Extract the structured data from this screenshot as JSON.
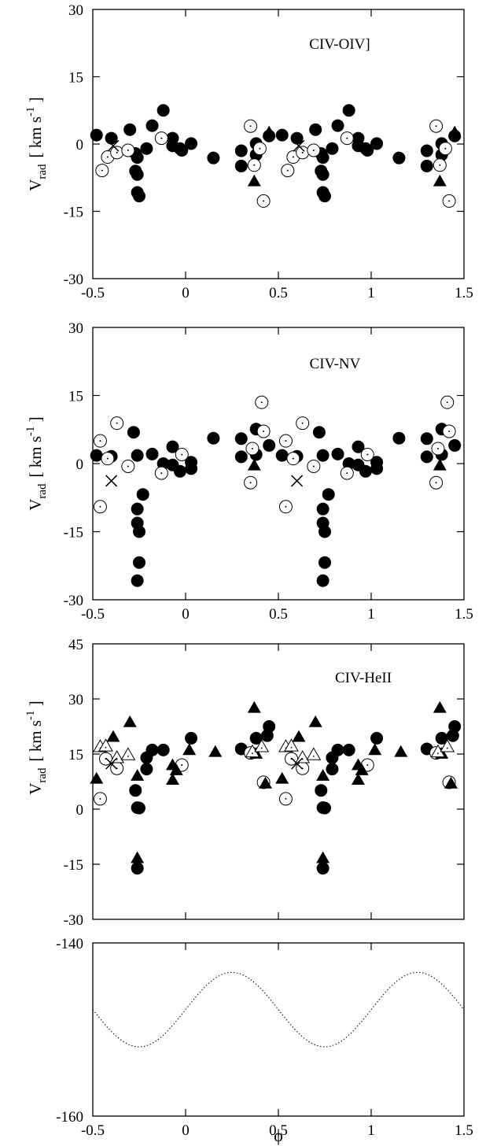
{
  "chart_data": [
    {
      "type": "scatter",
      "label": "CIV-OIV]",
      "ylabel": "V_rad [ km s^-1 ]",
      "ylabel_parts": {
        "V": "V",
        "sub": "rad",
        "unit_open": "[ km s",
        "sup": "-1",
        "unit_close": " ]"
      },
      "xlim": [
        -0.5,
        1.5
      ],
      "ylim": [
        -30,
        30
      ],
      "xticks": [
        "-0.5",
        "0",
        "0.5",
        "1",
        "1.5"
      ],
      "yticks": [
        "-30",
        "-15",
        "0",
        "15",
        "30"
      ],
      "series": [
        {
          "marker": "filled-circle",
          "points": [
            [
              -0.48,
              2.0
            ],
            [
              -0.4,
              1.3
            ],
            [
              -0.3,
              3.2
            ],
            [
              -0.27,
              -2.1
            ],
            [
              -0.26,
              -3.0
            ],
            [
              -0.27,
              -6.0
            ],
            [
              -0.26,
              -6.8
            ],
            [
              -0.26,
              -10.8
            ],
            [
              -0.25,
              -11.6
            ],
            [
              -0.21,
              -1.0
            ],
            [
              -0.18,
              4.1
            ],
            [
              -0.12,
              7.5
            ],
            [
              -0.07,
              1.3
            ],
            [
              -0.07,
              -0.4
            ],
            [
              -0.03,
              -1.0
            ],
            [
              -0.02,
              -1.4
            ],
            [
              0.03,
              0.1
            ],
            [
              0.15,
              -3.1
            ],
            [
              0.3,
              -1.5
            ],
            [
              0.3,
              -4.9
            ],
            [
              0.38,
              0.1
            ],
            [
              0.38,
              -2.4
            ],
            [
              0.45,
              1.8
            ]
          ]
        },
        {
          "marker": "open-circle",
          "points": [
            [
              -0.45,
              -5.9
            ],
            [
              -0.42,
              -2.9
            ],
            [
              -0.37,
              -1.9
            ],
            [
              -0.31,
              -1.4
            ],
            [
              -0.13,
              1.3
            ],
            [
              0.35,
              4.0
            ],
            [
              0.37,
              -4.7
            ],
            [
              0.4,
              -1.0
            ],
            [
              0.42,
              -12.7
            ]
          ]
        },
        {
          "marker": "filled-triangle",
          "points": [
            [
              0.37,
              -8.3
            ],
            [
              0.45,
              2.6
            ]
          ]
        },
        {
          "marker": "cross",
          "points": [
            [
              -0.39,
              -0.4
            ]
          ]
        }
      ]
    },
    {
      "type": "scatter",
      "label": "CIV-NV",
      "ylabel": "V_rad [ km s^-1 ]",
      "ylabel_parts": {
        "V": "V",
        "sub": "rad",
        "unit_open": "[ km s",
        "sup": "-1",
        "unit_close": " ]"
      },
      "xlim": [
        -0.5,
        1.5
      ],
      "ylim": [
        -30,
        30
      ],
      "xticks": [
        "-0.5",
        "0",
        "0.5",
        "1",
        "1.5"
      ],
      "yticks": [
        "-30",
        "-15",
        "0",
        "15",
        "30"
      ],
      "series": [
        {
          "marker": "filled-circle",
          "points": [
            [
              -0.48,
              1.8
            ],
            [
              -0.4,
              1.6
            ],
            [
              -0.28,
              6.9
            ],
            [
              -0.26,
              1.8
            ],
            [
              -0.26,
              -10.0
            ],
            [
              -0.26,
              -13.1
            ],
            [
              -0.25,
              -15.0
            ],
            [
              -0.25,
              -21.8
            ],
            [
              -0.26,
              -25.8
            ],
            [
              -0.23,
              -6.8
            ],
            [
              -0.18,
              2.1
            ],
            [
              -0.12,
              0.0
            ],
            [
              -0.07,
              3.7
            ],
            [
              -0.07,
              -0.3
            ],
            [
              -0.03,
              -1.7
            ],
            [
              0.03,
              0.3
            ],
            [
              0.03,
              -1.1
            ],
            [
              0.15,
              5.6
            ],
            [
              0.3,
              5.5
            ],
            [
              0.3,
              1.5
            ],
            [
              0.38,
              7.6
            ],
            [
              0.38,
              2.0
            ],
            [
              0.45,
              4.0
            ]
          ]
        },
        {
          "marker": "open-circle",
          "points": [
            [
              -0.46,
              5.0
            ],
            [
              -0.46,
              -9.5
            ],
            [
              -0.42,
              1.1
            ],
            [
              -0.37,
              8.9
            ],
            [
              -0.31,
              -0.6
            ],
            [
              -0.13,
              -2.1
            ],
            [
              -0.02,
              2.0
            ],
            [
              0.35,
              -4.2
            ],
            [
              0.36,
              3.3
            ],
            [
              0.41,
              13.5
            ],
            [
              0.42,
              7.1
            ]
          ]
        },
        {
          "marker": "filled-triangle",
          "points": [
            [
              0.37,
              -0.4
            ]
          ]
        },
        {
          "marker": "cross",
          "points": [
            [
              -0.4,
              -3.8
            ]
          ]
        }
      ]
    },
    {
      "type": "scatter",
      "label": "CIV-HeII",
      "ylabel": "V_rad [ km s^-1 ]",
      "ylabel_parts": {
        "V": "V",
        "sub": "rad",
        "unit_open": "[ km s",
        "sup": "-1",
        "unit_close": " ]"
      },
      "xlim": [
        -0.5,
        1.5
      ],
      "ylim": [
        -30,
        45
      ],
      "xticks": [],
      "yticks": [
        "-30",
        "-15",
        "0",
        "15",
        "30",
        "45"
      ],
      "series": [
        {
          "marker": "filled-circle",
          "points": [
            [
              -0.27,
              5.1
            ],
            [
              -0.26,
              0.4
            ],
            [
              -0.25,
              0.3
            ],
            [
              -0.26,
              -16.1
            ],
            [
              -0.21,
              10.9
            ],
            [
              -0.21,
              14.0
            ],
            [
              -0.18,
              16.1
            ],
            [
              -0.12,
              16.1
            ],
            [
              0.03,
              19.3
            ],
            [
              0.3,
              16.4
            ],
            [
              0.38,
              19.3
            ],
            [
              0.45,
              22.5
            ],
            [
              0.44,
              20.0
            ]
          ]
        },
        {
          "marker": "open-circle",
          "points": [
            [
              -0.46,
              2.8
            ],
            [
              -0.43,
              13.7
            ],
            [
              -0.37,
              11.1
            ],
            [
              -0.02,
              12.0
            ],
            [
              0.35,
              15.3
            ],
            [
              0.42,
              7.3
            ]
          ]
        },
        {
          "marker": "filled-triangle",
          "points": [
            [
              -0.48,
              8.3
            ],
            [
              -0.39,
              19.7
            ],
            [
              -0.3,
              23.7
            ],
            [
              -0.26,
              9.1
            ],
            [
              -0.26,
              -13.3
            ],
            [
              -0.07,
              8.0
            ],
            [
              -0.07,
              12.0
            ],
            [
              -0.05,
              10.6
            ],
            [
              0.02,
              16.1
            ],
            [
              0.16,
              15.6
            ],
            [
              0.37,
              27.6
            ],
            [
              0.38,
              15.1
            ],
            [
              0.43,
              7.0
            ]
          ]
        },
        {
          "marker": "open-triangle",
          "points": [
            [
              -0.46,
              17.0
            ],
            [
              -0.43,
              17.2
            ],
            [
              -0.37,
              14.0
            ],
            [
              -0.31,
              14.8
            ],
            [
              0.36,
              15.6
            ],
            [
              0.41,
              17.0
            ]
          ]
        },
        {
          "marker": "cross",
          "points": [
            [
              -0.4,
              12.4
            ]
          ]
        }
      ]
    },
    {
      "type": "line",
      "xlim": [
        -0.5,
        1.5
      ],
      "ylim": [
        -160,
        -140
      ],
      "xlabel": "ϕ",
      "xticks": [
        "-0.5",
        "0",
        "0.5",
        "1",
        "1.5"
      ],
      "yticks": [
        "-160",
        "-140"
      ],
      "curve": {
        "style": "dotted",
        "function": "sinusoid",
        "mean": -147.7,
        "amplitude": 4.3,
        "period": 1.0,
        "max_at_phase": 0.25
      }
    }
  ]
}
